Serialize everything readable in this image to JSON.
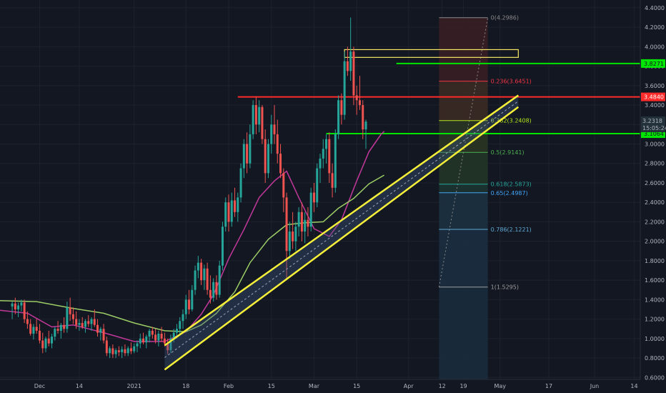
{
  "chart_data": {
    "type": "candlestick",
    "y_axis": {
      "ticks": [
        "4.4000",
        "4.2000",
        "4.0000",
        "3.8000",
        "3.6000",
        "3.4000",
        "3.2000",
        "3.0000",
        "2.8000",
        "2.6000",
        "2.4000",
        "2.2000",
        "2.0000",
        "1.8000",
        "1.6000",
        "1.4000",
        "1.2000",
        "1.0000",
        "0.8000",
        "0.6000"
      ],
      "tick_values": [
        4.4,
        4.2,
        4.0,
        3.8,
        3.6,
        3.4,
        3.2,
        3.0,
        2.8,
        2.6,
        2.4,
        2.2,
        2.0,
        1.8,
        1.6,
        1.4,
        1.2,
        1.0,
        0.8,
        0.6
      ],
      "range": [
        0.58,
        4.48
      ]
    },
    "x_axis": {
      "labels": [
        {
          "text": "Dec",
          "day": 9
        },
        {
          "text": "14",
          "day": 22
        },
        {
          "text": "2021",
          "day": 40
        },
        {
          "text": "18",
          "day": 57
        },
        {
          "text": "Feb",
          "day": 71
        },
        {
          "text": "15",
          "day": 85
        },
        {
          "text": "Mar",
          "day": 99
        },
        {
          "text": "15",
          "day": 113
        },
        {
          "text": "Apr",
          "day": 130
        },
        {
          "text": "12",
          "day": 141
        },
        {
          "text": "19",
          "day": 148
        },
        {
          "text": "May",
          "day": 160
        },
        {
          "text": "17",
          "day": 176
        },
        {
          "text": "Jun",
          "day": 191
        },
        {
          "text": "14",
          "day": 204
        }
      ],
      "range": [
        -4,
        206
      ]
    },
    "last_price": {
      "value": 3.2318,
      "label": "3.2318",
      "countdown": "15:05:24"
    },
    "horizontal_levels": [
      {
        "value": 3.8271,
        "label": "3.8271",
        "color": "#00e600",
        "x_start": 126
      },
      {
        "value": 3.484,
        "label": "3.4840",
        "color": "#ff2a2a",
        "x_start": 74
      },
      {
        "value": 3.1064,
        "label": "3.1064",
        "color": "#00e600",
        "x_start": 103
      }
    ],
    "resistance_box": {
      "x1": 109,
      "x2": 166,
      "y_low": 3.89,
      "y_high": 3.97,
      "color": "#f5e663"
    },
    "trend_channel": {
      "color": "#f5ef3a",
      "upper": [
        [
          50,
          0.93
        ],
        [
          166,
          3.5
        ]
      ],
      "lower": [
        [
          50,
          0.68
        ],
        [
          166,
          3.38
        ]
      ]
    },
    "fibonacci": {
      "x1": 140,
      "x2": 156,
      "levels": [
        {
          "ratio": "0",
          "value": 4.2986,
          "label": "0(4.2986)",
          "color": "#8a8a8a"
        },
        {
          "ratio": "0.236",
          "value": 3.6451,
          "label": "0.236(3.6451)",
          "color": "#f23645"
        },
        {
          "ratio": "0.382",
          "value": 3.2408,
          "label": "0.382(3.2408)",
          "color": "#b5e61d"
        },
        {
          "ratio": "0.5",
          "value": 2.9141,
          "label": "0.5(2.9141)",
          "color": "#4caf50"
        },
        {
          "ratio": "0.618",
          "value": 2.5873,
          "label": "0.618(2.5873)",
          "color": "#26a69a"
        },
        {
          "ratio": "0.65",
          "value": 2.4987,
          "label": "0.65(2.4987)",
          "color": "#42a5f5"
        },
        {
          "ratio": "0.786",
          "value": 2.1221,
          "label": "0.786(2.1221)",
          "color": "#5fa8d3"
        },
        {
          "ratio": "1",
          "value": 1.5295,
          "label": "1(1.5295)",
          "color": "#9e9e9e"
        }
      ]
    },
    "ma_fast": {
      "color": "#c2389a",
      "points": [
        [
          -4,
          1.29
        ],
        [
          5,
          1.26
        ],
        [
          13,
          1.12
        ],
        [
          20,
          1.14
        ],
        [
          30,
          1.06
        ],
        [
          40,
          0.97
        ],
        [
          50,
          0.97
        ],
        [
          57,
          1.07
        ],
        [
          62,
          1.25
        ],
        [
          66,
          1.45
        ],
        [
          71,
          1.82
        ],
        [
          76,
          2.12
        ],
        [
          81,
          2.45
        ],
        [
          86,
          2.62
        ],
        [
          90,
          2.72
        ],
        [
          94,
          2.45
        ],
        [
          99,
          2.13
        ],
        [
          104,
          2.05
        ],
        [
          108,
          2.22
        ],
        [
          113,
          2.62
        ],
        [
          117,
          2.92
        ],
        [
          121,
          3.1
        ],
        [
          122,
          3.13
        ]
      ]
    },
    "ma_slow": {
      "color": "#9ccc65",
      "points": [
        [
          -4,
          1.39
        ],
        [
          8,
          1.38
        ],
        [
          20,
          1.31
        ],
        [
          30,
          1.26
        ],
        [
          40,
          1.16
        ],
        [
          50,
          1.08
        ],
        [
          57,
          1.07
        ],
        [
          62,
          1.14
        ],
        [
          67,
          1.26
        ],
        [
          73,
          1.48
        ],
        [
          78,
          1.78
        ],
        [
          84,
          2.02
        ],
        [
          90,
          2.17
        ],
        [
          96,
          2.19
        ],
        [
          102,
          2.2
        ],
        [
          107,
          2.34
        ],
        [
          112,
          2.44
        ],
        [
          117,
          2.59
        ],
        [
          122,
          2.68
        ]
      ]
    },
    "candles": [
      {
        "o": 1.33,
        "h": 1.38,
        "l": 1.2,
        "c": 1.36
      },
      {
        "o": 1.36,
        "h": 1.42,
        "l": 1.25,
        "c": 1.3
      },
      {
        "o": 1.3,
        "h": 1.37,
        "l": 1.22,
        "c": 1.34
      },
      {
        "o": 1.34,
        "h": 1.4,
        "l": 1.28,
        "c": 1.37
      },
      {
        "o": 1.37,
        "h": 1.4,
        "l": 1.16,
        "c": 1.2
      },
      {
        "o": 1.2,
        "h": 1.28,
        "l": 1.1,
        "c": 1.15
      },
      {
        "o": 1.15,
        "h": 1.2,
        "l": 1.03,
        "c": 1.05
      },
      {
        "o": 1.05,
        "h": 1.15,
        "l": 0.99,
        "c": 1.12
      },
      {
        "o": 1.12,
        "h": 1.2,
        "l": 1.05,
        "c": 1.08
      },
      {
        "o": 1.08,
        "h": 1.15,
        "l": 0.95,
        "c": 0.98
      },
      {
        "o": 0.98,
        "h": 1.06,
        "l": 0.85,
        "c": 0.9
      },
      {
        "o": 0.9,
        "h": 1.02,
        "l": 0.86,
        "c": 1.0
      },
      {
        "o": 1.0,
        "h": 1.08,
        "l": 0.92,
        "c": 0.95
      },
      {
        "o": 0.95,
        "h": 1.05,
        "l": 0.9,
        "c": 1.02
      },
      {
        "o": 1.02,
        "h": 1.12,
        "l": 0.98,
        "c": 1.1
      },
      {
        "o": 1.1,
        "h": 1.18,
        "l": 1.05,
        "c": 1.08
      },
      {
        "o": 1.08,
        "h": 1.16,
        "l": 1.0,
        "c": 1.14
      },
      {
        "o": 1.14,
        "h": 1.22,
        "l": 1.06,
        "c": 1.1
      },
      {
        "o": 1.1,
        "h": 1.38,
        "l": 1.06,
        "c": 1.32
      },
      {
        "o": 1.32,
        "h": 1.42,
        "l": 1.18,
        "c": 1.25
      },
      {
        "o": 1.25,
        "h": 1.32,
        "l": 1.15,
        "c": 1.2
      },
      {
        "o": 1.2,
        "h": 1.28,
        "l": 1.1,
        "c": 1.14
      },
      {
        "o": 1.14,
        "h": 1.2,
        "l": 1.08,
        "c": 1.16
      },
      {
        "o": 1.16,
        "h": 1.22,
        "l": 1.1,
        "c": 1.12
      },
      {
        "o": 1.12,
        "h": 1.2,
        "l": 1.06,
        "c": 1.18
      },
      {
        "o": 1.18,
        "h": 1.24,
        "l": 1.12,
        "c": 1.15
      },
      {
        "o": 1.15,
        "h": 1.22,
        "l": 1.08,
        "c": 1.2
      },
      {
        "o": 1.2,
        "h": 1.3,
        "l": 1.12,
        "c": 1.14
      },
      {
        "o": 1.14,
        "h": 1.2,
        "l": 1.02,
        "c": 1.06
      },
      {
        "o": 1.06,
        "h": 1.12,
        "l": 0.98,
        "c": 1.1
      },
      {
        "o": 1.1,
        "h": 1.15,
        "l": 0.95,
        "c": 0.98
      },
      {
        "o": 0.98,
        "h": 1.02,
        "l": 0.82,
        "c": 0.85
      },
      {
        "o": 0.85,
        "h": 0.92,
        "l": 0.8,
        "c": 0.9
      },
      {
        "o": 0.9,
        "h": 0.94,
        "l": 0.8,
        "c": 0.84
      },
      {
        "o": 0.84,
        "h": 0.9,
        "l": 0.8,
        "c": 0.88
      },
      {
        "o": 0.88,
        "h": 0.92,
        "l": 0.82,
        "c": 0.86
      },
      {
        "o": 0.86,
        "h": 0.92,
        "l": 0.8,
        "c": 0.89
      },
      {
        "o": 0.89,
        "h": 0.94,
        "l": 0.82,
        "c": 0.85
      },
      {
        "o": 0.85,
        "h": 0.92,
        "l": 0.82,
        "c": 0.9
      },
      {
        "o": 0.9,
        "h": 0.96,
        "l": 0.84,
        "c": 0.87
      },
      {
        "o": 0.87,
        "h": 0.95,
        "l": 0.85,
        "c": 0.92
      },
      {
        "o": 0.92,
        "h": 0.98,
        "l": 0.86,
        "c": 0.95
      },
      {
        "o": 0.95,
        "h": 1.05,
        "l": 0.9,
        "c": 1.0
      },
      {
        "o": 1.0,
        "h": 1.06,
        "l": 0.94,
        "c": 0.96
      },
      {
        "o": 0.96,
        "h": 1.04,
        "l": 0.9,
        "c": 1.02
      },
      {
        "o": 1.02,
        "h": 1.1,
        "l": 0.96,
        "c": 1.08
      },
      {
        "o": 1.08,
        "h": 1.12,
        "l": 1.0,
        "c": 1.04
      },
      {
        "o": 1.04,
        "h": 1.1,
        "l": 0.95,
        "c": 0.98
      },
      {
        "o": 0.98,
        "h": 1.08,
        "l": 0.92,
        "c": 1.05
      },
      {
        "o": 1.05,
        "h": 1.12,
        "l": 0.97,
        "c": 1.0
      },
      {
        "o": 1.0,
        "h": 1.06,
        "l": 0.92,
        "c": 0.95
      },
      {
        "o": 0.95,
        "h": 1.0,
        "l": 0.84,
        "c": 0.88
      },
      {
        "o": 0.88,
        "h": 1.04,
        "l": 0.85,
        "c": 1.0
      },
      {
        "o": 1.0,
        "h": 1.1,
        "l": 0.96,
        "c": 1.06
      },
      {
        "o": 1.06,
        "h": 1.15,
        "l": 1.0,
        "c": 1.1
      },
      {
        "o": 1.1,
        "h": 1.22,
        "l": 1.05,
        "c": 1.18
      },
      {
        "o": 1.18,
        "h": 1.3,
        "l": 1.1,
        "c": 1.25
      },
      {
        "o": 1.25,
        "h": 1.45,
        "l": 1.2,
        "c": 1.4
      },
      {
        "o": 1.4,
        "h": 1.5,
        "l": 1.25,
        "c": 1.3
      },
      {
        "o": 1.3,
        "h": 1.55,
        "l": 1.28,
        "c": 1.5
      },
      {
        "o": 1.5,
        "h": 1.75,
        "l": 1.45,
        "c": 1.7
      },
      {
        "o": 1.7,
        "h": 1.85,
        "l": 1.62,
        "c": 1.78
      },
      {
        "o": 1.78,
        "h": 1.82,
        "l": 1.55,
        "c": 1.6
      },
      {
        "o": 1.6,
        "h": 1.76,
        "l": 1.5,
        "c": 1.72
      },
      {
        "o": 1.72,
        "h": 1.78,
        "l": 1.45,
        "c": 1.5
      },
      {
        "o": 1.5,
        "h": 1.65,
        "l": 1.36,
        "c": 1.42
      },
      {
        "o": 1.42,
        "h": 1.62,
        "l": 1.38,
        "c": 1.58
      },
      {
        "o": 1.58,
        "h": 1.65,
        "l": 1.4,
        "c": 1.45
      },
      {
        "o": 1.45,
        "h": 1.8,
        "l": 1.42,
        "c": 1.75
      },
      {
        "o": 1.75,
        "h": 2.2,
        "l": 1.7,
        "c": 2.15
      },
      {
        "o": 2.15,
        "h": 2.45,
        "l": 2.1,
        "c": 2.4
      },
      {
        "o": 2.4,
        "h": 2.48,
        "l": 2.1,
        "c": 2.2
      },
      {
        "o": 2.2,
        "h": 2.5,
        "l": 2.15,
        "c": 2.42
      },
      {
        "o": 2.42,
        "h": 2.55,
        "l": 2.25,
        "c": 2.3
      },
      {
        "o": 2.3,
        "h": 2.5,
        "l": 2.2,
        "c": 2.45
      },
      {
        "o": 2.45,
        "h": 2.8,
        "l": 2.4,
        "c": 2.75
      },
      {
        "o": 2.75,
        "h": 3.05,
        "l": 2.65,
        "c": 3.0
      },
      {
        "o": 3.0,
        "h": 3.12,
        "l": 2.7,
        "c": 2.8
      },
      {
        "o": 2.8,
        "h": 3.2,
        "l": 2.75,
        "c": 3.1
      },
      {
        "o": 3.1,
        "h": 3.45,
        "l": 3.05,
        "c": 3.4
      },
      {
        "o": 3.4,
        "h": 3.49,
        "l": 3.1,
        "c": 3.2
      },
      {
        "o": 3.2,
        "h": 3.45,
        "l": 3.12,
        "c": 3.38
      },
      {
        "o": 3.38,
        "h": 3.4,
        "l": 3.0,
        "c": 3.05
      },
      {
        "o": 3.05,
        "h": 3.15,
        "l": 2.6,
        "c": 2.7
      },
      {
        "o": 2.7,
        "h": 3.05,
        "l": 2.65,
        "c": 3.0
      },
      {
        "o": 3.0,
        "h": 3.3,
        "l": 2.9,
        "c": 3.2
      },
      {
        "o": 3.2,
        "h": 3.4,
        "l": 3.0,
        "c": 3.1
      },
      {
        "o": 3.1,
        "h": 3.25,
        "l": 2.8,
        "c": 2.9
      },
      {
        "o": 2.9,
        "h": 3.0,
        "l": 2.65,
        "c": 2.7
      },
      {
        "o": 2.7,
        "h": 2.75,
        "l": 2.3,
        "c": 2.45
      },
      {
        "o": 2.45,
        "h": 2.5,
        "l": 1.6,
        "c": 1.9
      },
      {
        "o": 1.9,
        "h": 2.2,
        "l": 1.82,
        "c": 2.1
      },
      {
        "o": 2.1,
        "h": 2.3,
        "l": 1.92,
        "c": 2.0
      },
      {
        "o": 2.0,
        "h": 2.2,
        "l": 1.9,
        "c": 2.15
      },
      {
        "o": 2.15,
        "h": 2.35,
        "l": 2.05,
        "c": 2.3
      },
      {
        "o": 2.3,
        "h": 2.4,
        "l": 2.0,
        "c": 2.1
      },
      {
        "o": 2.1,
        "h": 2.3,
        "l": 1.98,
        "c": 2.22
      },
      {
        "o": 2.22,
        "h": 2.35,
        "l": 2.05,
        "c": 2.15
      },
      {
        "o": 2.15,
        "h": 2.55,
        "l": 2.1,
        "c": 2.5
      },
      {
        "o": 2.5,
        "h": 2.6,
        "l": 2.3,
        "c": 2.4
      },
      {
        "o": 2.4,
        "h": 2.8,
        "l": 2.35,
        "c": 2.75
      },
      {
        "o": 2.75,
        "h": 2.9,
        "l": 2.6,
        "c": 2.85
      },
      {
        "o": 2.85,
        "h": 3.05,
        "l": 2.75,
        "c": 2.95
      },
      {
        "o": 2.95,
        "h": 3.1,
        "l": 2.8,
        "c": 3.05
      },
      {
        "o": 3.05,
        "h": 3.12,
        "l": 2.6,
        "c": 2.7
      },
      {
        "o": 2.7,
        "h": 2.8,
        "l": 2.45,
        "c": 2.55
      },
      {
        "o": 2.55,
        "h": 3.15,
        "l": 2.5,
        "c": 3.1
      },
      {
        "o": 3.1,
        "h": 3.5,
        "l": 3.05,
        "c": 3.45
      },
      {
        "o": 3.45,
        "h": 3.52,
        "l": 3.2,
        "c": 3.3
      },
      {
        "o": 3.3,
        "h": 3.95,
        "l": 3.25,
        "c": 3.85
      },
      {
        "o": 3.85,
        "h": 4.0,
        "l": 3.7,
        "c": 3.75
      },
      {
        "o": 3.75,
        "h": 4.3,
        "l": 3.65,
        "c": 3.95
      },
      {
        "o": 3.95,
        "h": 4.0,
        "l": 3.4,
        "c": 3.5
      },
      {
        "o": 3.5,
        "h": 3.6,
        "l": 3.3,
        "c": 3.45
      },
      {
        "o": 3.45,
        "h": 3.7,
        "l": 3.35,
        "c": 3.4
      },
      {
        "o": 3.4,
        "h": 3.45,
        "l": 3.05,
        "c": 3.15
      },
      {
        "o": 3.15,
        "h": 3.25,
        "l": 2.95,
        "c": 3.23
      }
    ]
  }
}
